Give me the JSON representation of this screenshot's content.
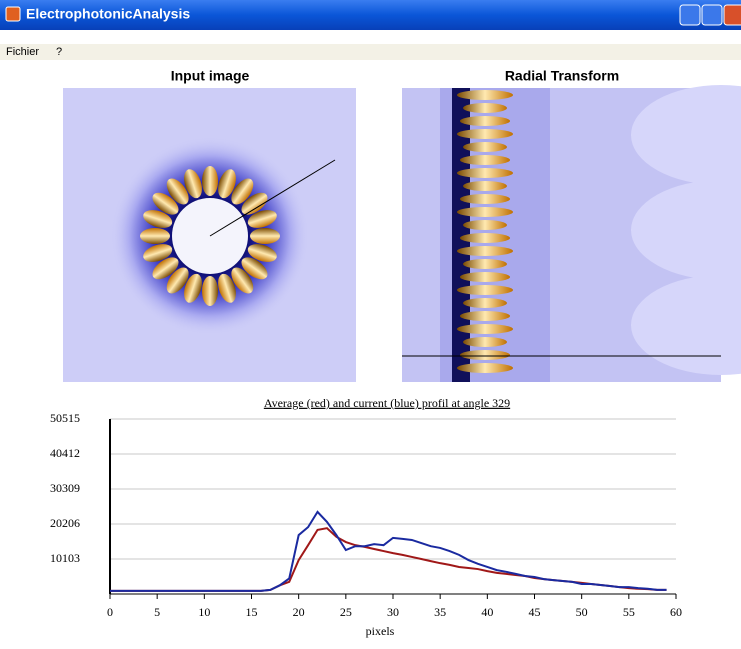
{
  "window_title": "ElectrophotonicAnalysis",
  "menu": [
    "Fichier",
    "?"
  ],
  "panels": {
    "input_title": "Input image",
    "radial_title": "Radial Transform"
  },
  "chart_data": {
    "type": "line",
    "title": "Average (red) and current (blue) profil at angle 329",
    "xlabel": "pixels",
    "x": [
      0,
      1,
      2,
      3,
      4,
      5,
      6,
      7,
      8,
      9,
      10,
      11,
      12,
      13,
      14,
      15,
      16,
      17,
      18,
      19,
      20,
      21,
      22,
      23,
      24,
      25,
      26,
      27,
      28,
      29,
      30,
      31,
      32,
      33,
      34,
      35,
      36,
      37,
      38,
      39,
      40,
      41,
      42,
      43,
      44,
      45,
      46,
      47,
      48,
      49,
      50,
      51,
      52,
      53,
      54,
      55,
      56,
      57,
      58,
      59
    ],
    "series": [
      {
        "color": "#a01818",
        "values": [
          900,
          900,
          900,
          900,
          900,
          900,
          900,
          900,
          900,
          900,
          900,
          900,
          900,
          900,
          900,
          900,
          900,
          1200,
          2500,
          3500,
          9800,
          14100,
          18500,
          19000,
          16500,
          15000,
          14100,
          13600,
          13000,
          12400,
          11800,
          11300,
          10700,
          10100,
          9500,
          8900,
          8400,
          7800,
          7500,
          7200,
          6600,
          6100,
          5800,
          5500,
          5200,
          4600,
          4300,
          4000,
          3750,
          3500,
          3200,
          2900,
          2600,
          2300,
          2000,
          1700,
          1500,
          1400,
          1200,
          1200
        ]
      },
      {
        "color": "#1a2aa0",
        "values": [
          900,
          900,
          900,
          900,
          900,
          900,
          900,
          900,
          900,
          900,
          900,
          900,
          900,
          900,
          900,
          900,
          900,
          1200,
          2500,
          4500,
          17000,
          19300,
          23700,
          20800,
          17000,
          12700,
          13800,
          13800,
          14400,
          14100,
          16200,
          15900,
          15600,
          14700,
          13800,
          13300,
          12400,
          11300,
          9800,
          8700,
          7800,
          6900,
          6400,
          5800,
          5200,
          4900,
          4300,
          4000,
          3750,
          3500,
          2900,
          2900,
          2600,
          2300,
          2000,
          2000,
          1700,
          1500,
          1200,
          1200
        ]
      }
    ],
    "xlim": [
      0,
      60
    ],
    "xticks": [
      0,
      5,
      10,
      15,
      20,
      25,
      30,
      35,
      40,
      45,
      50,
      55,
      60
    ],
    "ylim": [
      0,
      50515
    ],
    "yticks": [
      10103,
      20206,
      30309,
      40412,
      50515
    ],
    "grid": true
  }
}
